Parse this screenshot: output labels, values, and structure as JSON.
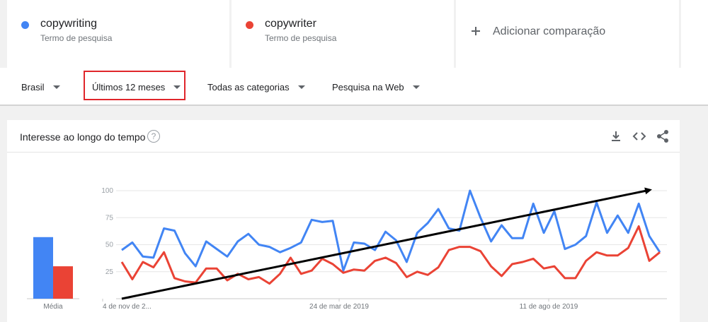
{
  "terms": [
    {
      "name": "copywriting",
      "sub": "Termo de pesquisa",
      "color": "#4285f4"
    },
    {
      "name": "copywriter",
      "sub": "Termo de pesquisa",
      "color": "#ea4335"
    }
  ],
  "add_comparison": "Adicionar comparação",
  "filters": {
    "region": "Brasil",
    "period": "Últimos 12 meses",
    "category": "Todas as categorias",
    "search_type": "Pesquisa na Web"
  },
  "card": {
    "title": "Interesse ao longo do tempo",
    "help": "?"
  },
  "colors": {
    "blue": "#4285f4",
    "red": "#ea4335",
    "trend_arrow": "#000000",
    "highlight": "#e0262b"
  },
  "chart_data": {
    "type": "line",
    "ylim": [
      0,
      100
    ],
    "y_ticks": [
      "25",
      "50",
      "75",
      "100"
    ],
    "x_tick_labels": [
      "4 de nov de 2...",
      "24 de mar de 2019",
      "11 de ago de 2019"
    ],
    "average": {
      "label": "Média",
      "values": [
        {
          "series": "copywriting",
          "value": 57
        },
        {
          "series": "copywriter",
          "value": 30
        }
      ]
    },
    "series": [
      {
        "name": "copywriting",
        "values": [
          45,
          52,
          39,
          38,
          65,
          63,
          42,
          30,
          53,
          46,
          39,
          53,
          60,
          50,
          48,
          43,
          47,
          52,
          73,
          71,
          72,
          26,
          52,
          51,
          45,
          62,
          54,
          34,
          61,
          70,
          83,
          65,
          63,
          100,
          75,
          53,
          68,
          56,
          56,
          88,
          61,
          81,
          46,
          50,
          58,
          89,
          61,
          77,
          61,
          88,
          58,
          43
        ]
      },
      {
        "name": "copywriter",
        "values": [
          34,
          18,
          34,
          29,
          43,
          19,
          16,
          15,
          28,
          28,
          17,
          23,
          18,
          20,
          14,
          23,
          38,
          23,
          26,
          37,
          32,
          24,
          27,
          26,
          35,
          38,
          33,
          20,
          25,
          22,
          29,
          45,
          48,
          48,
          44,
          30,
          21,
          32,
          34,
          37,
          28,
          30,
          19,
          19,
          35,
          43,
          40,
          40,
          47,
          67,
          35,
          43
        ]
      }
    ]
  }
}
